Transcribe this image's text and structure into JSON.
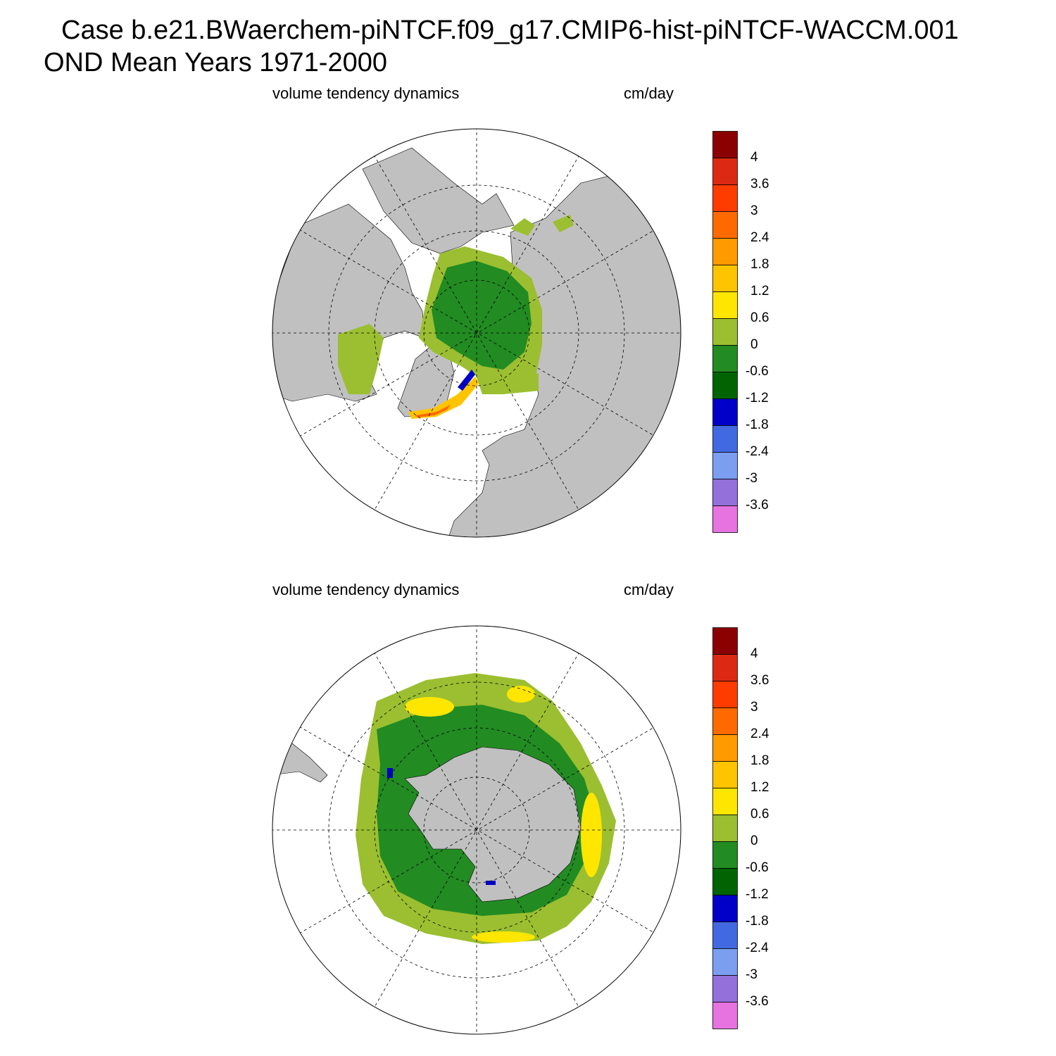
{
  "title": {
    "line1": "Case b.e21.BWaerchem-piNTCF.f09_g17.CMIP6-hist-piNTCF-WACCM.001",
    "line2": "OND Mean   Years 1971-2000"
  },
  "panels": [
    {
      "id": "north",
      "hemisphere": "Arctic (north polar stereographic)",
      "variable": "volume tendency dynamics",
      "units": "cm/day"
    },
    {
      "id": "south",
      "hemisphere": "Antarctic (south polar stereographic)",
      "variable": "volume tendency dynamics",
      "units": "cm/day"
    }
  ],
  "colorbar": {
    "levels": [
      "4",
      "3.6",
      "3",
      "2.4",
      "1.8",
      "1.2",
      "0.6",
      "0",
      "-0.6",
      "-1.2",
      "-1.8",
      "-2.4",
      "-3",
      "-3.6"
    ],
    "colors": [
      "#8b0000",
      "#dc2a12",
      "#ff3c00",
      "#ff6a00",
      "#ff9a00",
      "#ffc400",
      "#ffe600",
      "#9bbf30",
      "#228b22",
      "#006400",
      "#0000c8",
      "#4169e1",
      "#7b9ef0",
      "#9370db",
      "#e673e0"
    ]
  },
  "map_colors": {
    "land": "#c0c0c0",
    "ocean_no_data": "#ffffff"
  }
}
